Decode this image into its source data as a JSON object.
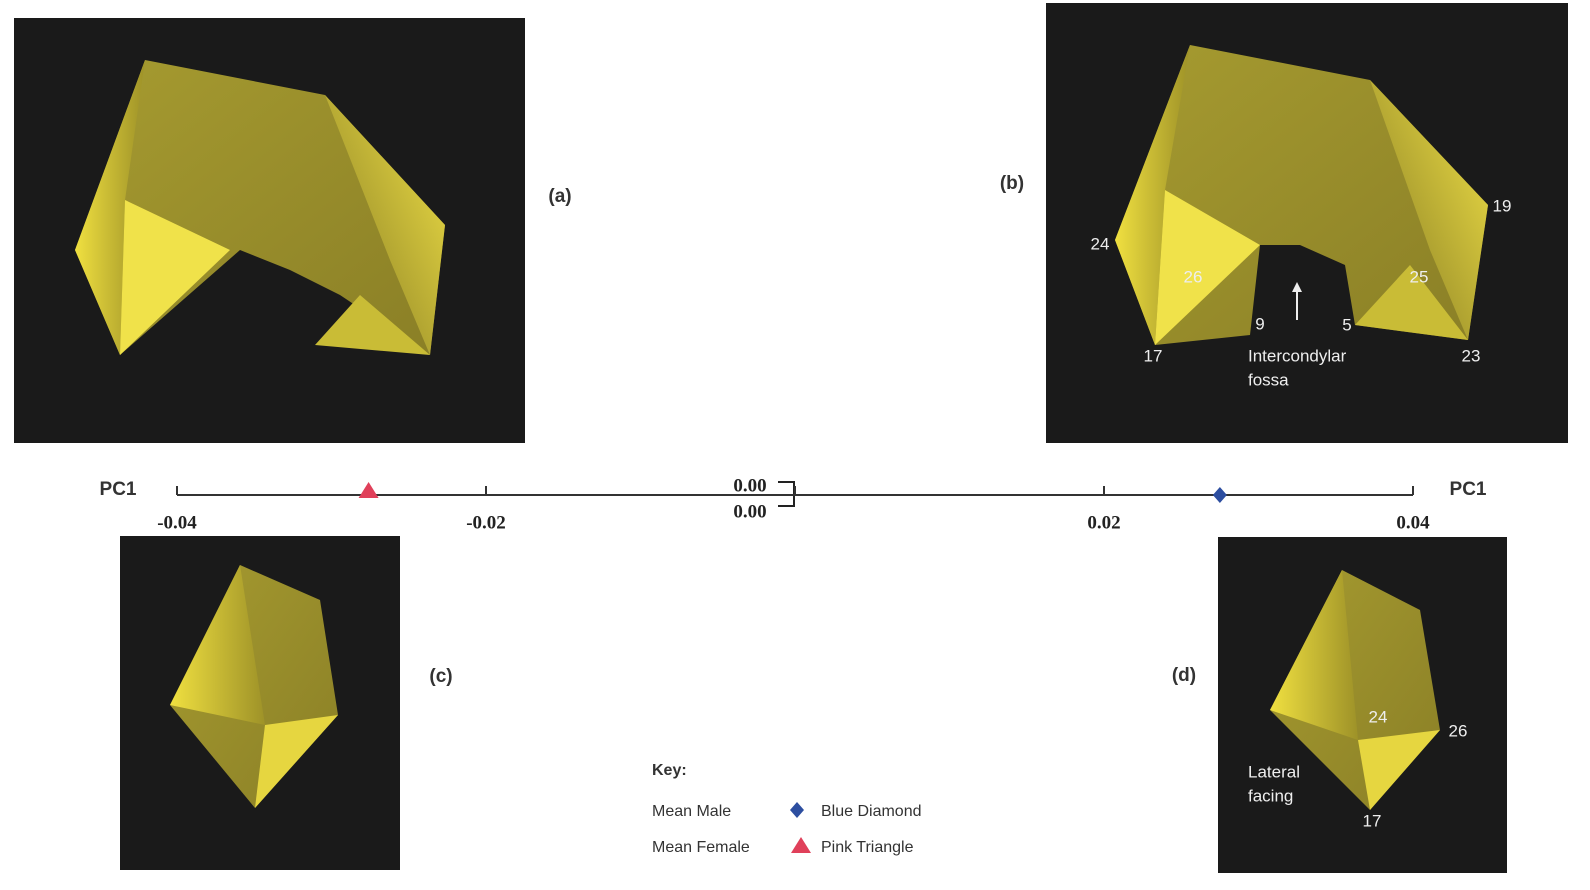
{
  "chart_data": {
    "type": "strip",
    "axis_label": "PC1",
    "xlim": [
      -0.04,
      0.04
    ],
    "xticks": [
      -0.04,
      -0.02,
      {
        "value": 0,
        "label": "0.00"
      },
      0.02,
      0.04
    ],
    "annotations": [
      "0.00"
    ],
    "series": [
      {
        "name": "Mean Male",
        "marker": "Blue Diamond",
        "shape": "diamond",
        "color": "#2d4ea0",
        "values": [
          0.0275
        ]
      },
      {
        "name": "Mean Female",
        "marker": "Pink Triangle",
        "shape": "triangle",
        "color": "#e0405a",
        "values": [
          -0.0276
        ]
      }
    ],
    "legend_title": "Key:",
    "panels": [
      {
        "label": "(a)",
        "annotations": []
      },
      {
        "label": "(b)",
        "annotations": [
          "19",
          "24",
          "26",
          "25",
          "9",
          "5",
          "17",
          "23",
          "Intercondylar",
          "fossa"
        ]
      },
      {
        "label": "(c)",
        "annotations": []
      },
      {
        "label": "(d)",
        "annotations": [
          "24",
          "26",
          "Lateral",
          "facing",
          "17"
        ]
      }
    ]
  }
}
